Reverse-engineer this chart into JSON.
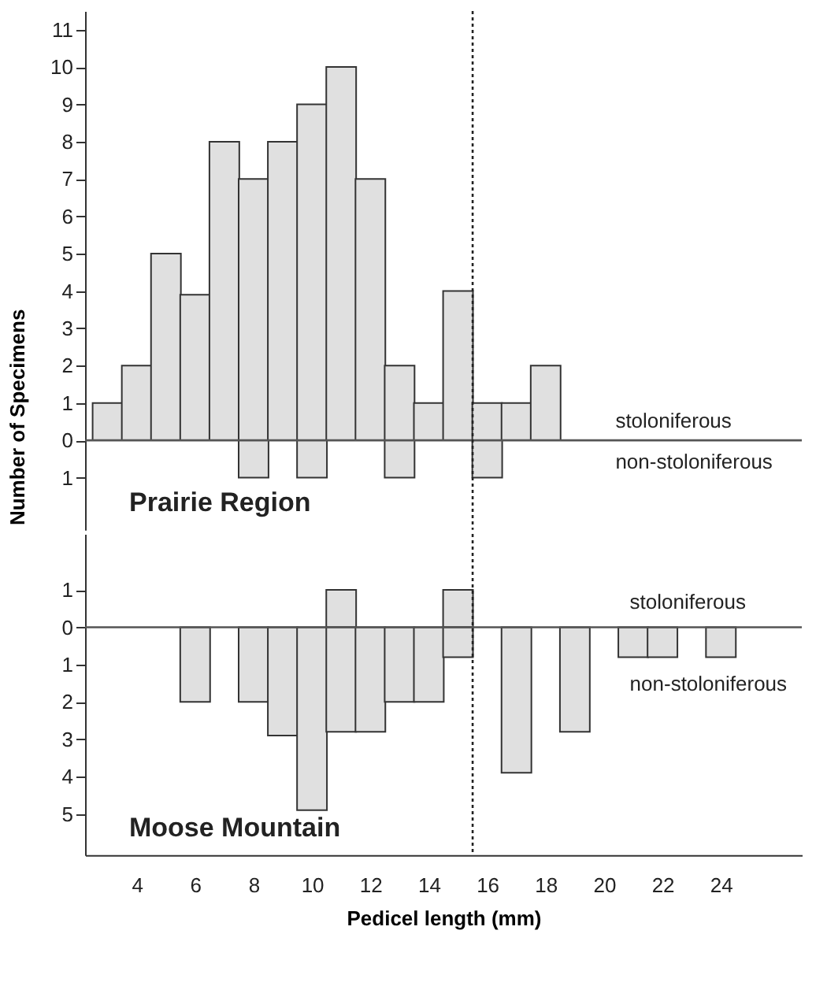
{
  "chart_data": [
    {
      "type": "bar",
      "title": "Prairie Region",
      "ylabel": "Number of Specimens",
      "x": [
        3,
        4,
        5,
        6,
        7,
        8,
        9,
        10,
        11,
        12,
        13,
        14,
        15,
        16,
        17,
        18
      ],
      "series": [
        {
          "color": "#e0e0e0",
          "values": [
            1,
            2,
            5,
            3.9,
            8,
            7,
            8,
            9,
            10,
            7,
            2,
            1,
            4,
            1,
            1,
            2
          ]
        },
        {
          "color": "#e0e0e0",
          "values": [
            null,
            null,
            null,
            null,
            null,
            -1,
            null,
            -1,
            null,
            null,
            -1,
            null,
            null,
            -1,
            null,
            null
          ]
        }
      ],
      "xlim": [
        2.5,
        26.5
      ],
      "ylim": [
        -2.4,
        11.5
      ],
      "yticks": [
        {
          "value": -1,
          "label": "1"
        },
        0,
        1,
        2,
        3,
        4,
        5,
        6,
        7,
        8,
        9,
        10,
        11
      ],
      "tick_labels": "y",
      "ref_lines": [
        {
          "axis": "y",
          "value": 0,
          "color": "#555555"
        },
        {
          "axis": "x",
          "value": 15.5,
          "line_style": "dotted",
          "color": "#222222"
        }
      ],
      "annotations": [
        "stoloniferous",
        "non-stoloniferous"
      ]
    },
    {
      "type": "bar",
      "title": "Moose Mountain",
      "xlabel": "Pedicel length (mm)",
      "x": [
        6,
        8,
        9,
        10,
        11,
        12,
        13,
        14,
        15,
        17,
        19,
        21,
        22,
        24
      ],
      "series": [
        {
          "color": "#e0e0e0",
          "values": [
            null,
            null,
            null,
            null,
            1,
            null,
            null,
            null,
            1,
            null,
            null,
            null,
            null,
            null
          ]
        },
        {
          "color": "#e0e0e0",
          "values": [
            -2,
            -2,
            -2.9,
            -4.9,
            -2.8,
            -2.8,
            -2,
            -2,
            -0.8,
            -3.9,
            -2.8,
            -0.8,
            -0.8,
            -0.8
          ]
        }
      ],
      "xlim": [
        2.5,
        26.5
      ],
      "ylim": [
        -6.1,
        2.5
      ],
      "xticks": [
        4,
        6,
        8,
        10,
        12,
        14,
        16,
        18,
        20,
        22,
        24
      ],
      "yticks": [
        {
          "value": -5,
          "label": "5"
        },
        {
          "value": -4,
          "label": "4"
        },
        {
          "value": -3,
          "label": "3"
        },
        {
          "value": -2,
          "label": "2"
        },
        {
          "value": -1,
          "label": "1"
        },
        0,
        1
      ],
      "ref_lines": [
        {
          "axis": "y",
          "value": 0,
          "color": "#555555"
        },
        {
          "axis": "x",
          "value": 15.5,
          "line_style": "dotted",
          "color": "#222222"
        }
      ],
      "annotations": [
        "stoloniferous",
        "non-stoloniferous"
      ]
    }
  ]
}
